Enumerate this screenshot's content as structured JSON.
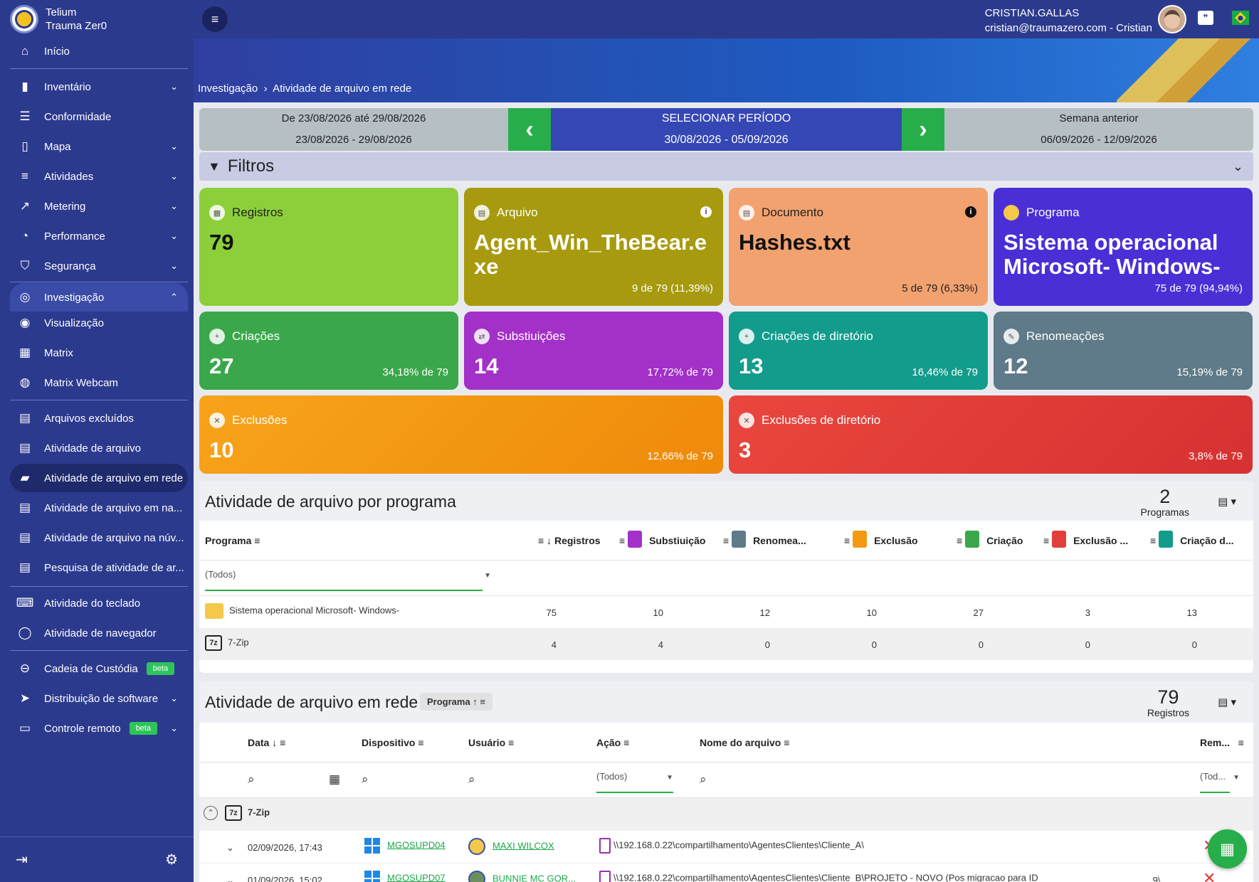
{
  "brand": {
    "line1": "Telium",
    "line2": "Trauma Zer0"
  },
  "sidebar": {
    "items": [
      {
        "label": "Início",
        "icon": "home-icon"
      },
      {
        "label": "Inventário",
        "icon": "inventory-icon"
      },
      {
        "label": "Conformidade",
        "icon": "checklist-icon"
      },
      {
        "label": "Mapa",
        "icon": "map-icon"
      },
      {
        "label": "Atividades",
        "icon": "activity-icon"
      },
      {
        "label": "Metering",
        "icon": "chart-icon"
      },
      {
        "label": "Performance",
        "icon": "gauge-icon"
      },
      {
        "label": "Segurança",
        "icon": "shield-icon"
      },
      {
        "label": "Investigação",
        "icon": "fingerprint-icon"
      },
      {
        "label": "Visualização",
        "icon": "monitor-eye-icon"
      },
      {
        "label": "Matrix",
        "icon": "matrix-icon"
      },
      {
        "label": "Matrix Webcam",
        "icon": "webcam-icon"
      },
      {
        "label": "Arquivos excluídos",
        "icon": "file-x-icon"
      },
      {
        "label": "Atividade de arquivo",
        "icon": "file-pen-icon"
      },
      {
        "label": "Atividade de arquivo em rede",
        "icon": "folder-network-icon"
      },
      {
        "label": "Atividade de arquivo em na...",
        "icon": "file-gear-icon"
      },
      {
        "label": "Atividade de arquivo na núv...",
        "icon": "file-cloud-icon"
      },
      {
        "label": "Pesquisa de atividade de ar...",
        "icon": "file-search-icon"
      },
      {
        "label": "Atividade do teclado",
        "icon": "keyboard-icon"
      },
      {
        "label": "Atividade de navegador",
        "icon": "globe-icon"
      },
      {
        "label": "Cadeia de Custódia",
        "icon": "link-icon",
        "badge": "beta"
      },
      {
        "label": "Distribuição de software",
        "icon": "send-icon"
      },
      {
        "label": "Controle remoto",
        "icon": "remote-icon",
        "badge": "beta"
      }
    ]
  },
  "header": {
    "user_name": "CRISTIAN.GALLAS",
    "user_email": "cristian@traumazero.com - Cristian",
    "breadcrumb_root": "Investigação",
    "breadcrumb_current": "Atividade de arquivo em rede"
  },
  "period": {
    "prev_title": "De 23/08/2026 até 29/08/2026",
    "prev_range": "23/08/2026 - 29/08/2026",
    "center_title": "SELECIONAR PERÍODO",
    "center_range": "30/08/2026  -  05/09/2026",
    "next_title": "Semana anterior",
    "next_range": "06/09/2026 - 12/09/2026"
  },
  "filters_label": "Filtros",
  "cards": {
    "registros": {
      "label": "Registros",
      "value": "79",
      "color": "#8ccf3a"
    },
    "arquivo": {
      "label": "Arquivo",
      "value": "Agent_Win_TheBear.exe",
      "pct": "9 de 79 (11,39%)",
      "color": "#a79a0e"
    },
    "documento": {
      "label": "Documento",
      "value": "Hashes.txt",
      "pct": "5 de 79 (6,33%)",
      "color": "#f2a26f"
    },
    "programa": {
      "label": "Programa",
      "value": "Sistema operacional Microsoft- Windows-",
      "pct": "75 de 79 (94,94%)",
      "color": "#4a2fd6"
    },
    "criacoes": {
      "label": "Criações",
      "value": "27",
      "pct": "34,18% de 79",
      "color": "#3aa84a"
    },
    "substituicoes": {
      "label": "Substiuições",
      "value": "14",
      "pct": "17,72% de 79",
      "color": "#a330c8"
    },
    "criacoes_dir": {
      "label": "Criações de diretório",
      "value": "13",
      "pct": "16,46% de 79",
      "color": "#129c8c"
    },
    "renomeacoes": {
      "label": "Renomeações",
      "value": "12",
      "pct": "15,19% de 79",
      "color": "#5f7a88"
    },
    "exclusoes": {
      "label": "Exclusões",
      "value": "10",
      "pct": "12,66% de 79",
      "color": "#f39a12"
    },
    "exclusoes_dir": {
      "label": "Exclusões de diretório",
      "value": "3",
      "pct": "3,8% de 79",
      "color": "#e23f3a"
    }
  },
  "program_table": {
    "title": "Atividade de arquivo por programa",
    "count": "2",
    "count_label": "Programas",
    "headers": [
      "Programa",
      "Registros",
      "Substiuição",
      "Renomea...",
      "Exclusão",
      "Criação",
      "Exclusão ...",
      "Criação d..."
    ],
    "filter_value": "(Todos)",
    "rows": [
      {
        "name": "Sistema operacional Microsoft- Windows-",
        "values": [
          "75",
          "10",
          "12",
          "10",
          "27",
          "3",
          "13"
        ]
      },
      {
        "name": "7-Zip",
        "values": [
          "4",
          "4",
          "0",
          "0",
          "0",
          "0",
          "0"
        ]
      }
    ]
  },
  "activity_table": {
    "title": "Atividade de arquivo em rede",
    "group_chip": "Programa",
    "count": "79",
    "count_label": "Registros",
    "headers": [
      "Data",
      "Dispositivo",
      "Usuário",
      "Ação",
      "Nome do arquivo",
      "Rem..."
    ],
    "action_filter": "(Todos)",
    "rem_filter": "(Tod...",
    "group_name": "7-Zip",
    "rows": [
      {
        "date": "02/09/2026, 17:43",
        "device": "MGOSUPD04",
        "user": "MAXI WILCOX",
        "file": "\\\\192.168.0.22\\compartilhamento\\AgentesClientes\\Cliente_A\\"
      },
      {
        "date": "01/09/2026, 15:02",
        "device": "MGOSUPD07",
        "user": "BUNNIE MC GOR...",
        "file": "\\\\192.168.0.22\\compartilhamento\\AgentesClientes\\Cliente_B\\PROJETO - NOVO (Pos migracao para ID",
        "extra": ".9\\"
      }
    ]
  }
}
